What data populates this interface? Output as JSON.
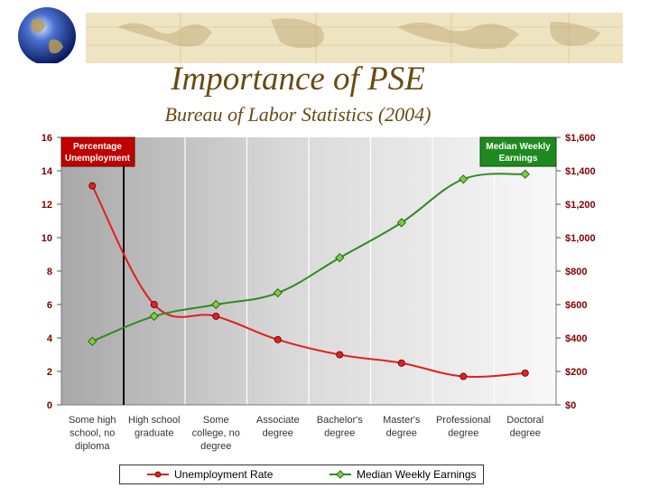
{
  "header": {
    "title": "Importance of PSE",
    "subtitle": "Bureau of Labor Statistics (2004)"
  },
  "colors": {
    "unemployment": "#e02020",
    "earnings": "#2e8b20",
    "axis_text": "#800000",
    "banner": "#e8d9a8"
  },
  "chart_data": {
    "type": "line",
    "categories": [
      "Some high school, no diploma",
      "High school graduate",
      "Some college, no degree",
      "Associate degree",
      "Bachelor's degree",
      "Master's degree",
      "Professional degree",
      "Doctoral degree"
    ],
    "category_lines": [
      [
        "Some high",
        "school, no",
        "diploma"
      ],
      [
        "High school",
        "graduate"
      ],
      [
        "Some",
        "college, no",
        "degree"
      ],
      [
        "Associate",
        "degree"
      ],
      [
        "Bachelor's",
        "degree"
      ],
      [
        "Master's",
        "degree"
      ],
      [
        "Professional",
        "degree"
      ],
      [
        "Doctoral",
        "degree"
      ]
    ],
    "series": [
      {
        "name": "Unemployment Rate",
        "axis": "left",
        "values": [
          13.1,
          6.0,
          5.3,
          3.9,
          3.0,
          2.5,
          1.7,
          1.9
        ]
      },
      {
        "name": "Median Weekly Earnings",
        "axis": "right",
        "values": [
          380,
          530,
          600,
          670,
          880,
          1090,
          1350,
          1380
        ]
      }
    ],
    "left_axis": {
      "ylim": [
        0,
        16
      ],
      "ticks": [
        "0",
        "2",
        "4",
        "6",
        "8",
        "10",
        "12",
        "14",
        "16"
      ],
      "annotation": [
        "Percentage",
        "Unemployment"
      ]
    },
    "right_axis": {
      "ylim": [
        0,
        1600
      ],
      "ticks": [
        "$0",
        "$200",
        "$400",
        "$600",
        "$800",
        "$1,000",
        "$1,200",
        "$1,400",
        "$1,600"
      ],
      "annotation": [
        "Median Weekly",
        "Earnings"
      ]
    },
    "legend": [
      "Unemployment Rate",
      "Median Weekly Earnings"
    ],
    "legend_position": "bottom",
    "grid": false
  }
}
